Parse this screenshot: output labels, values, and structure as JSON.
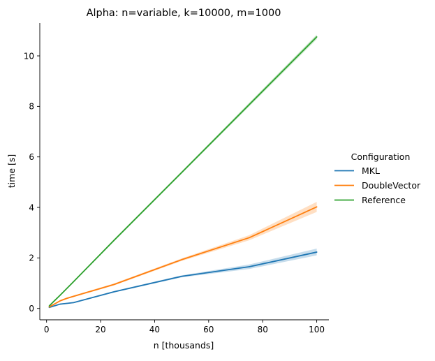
{
  "chart_data": {
    "type": "line",
    "title": "Alpha: n=variable, k=10000, m=1000",
    "xlabel": "n [thousands]",
    "ylabel": "time [s]",
    "xlim": [
      -2.5,
      104.5
    ],
    "ylim": [
      -0.45,
      11.3
    ],
    "xticks": [
      0,
      20,
      40,
      60,
      80,
      100
    ],
    "yticks": [
      0,
      2,
      4,
      6,
      8,
      10
    ],
    "grid": false,
    "legend": {
      "title": "Configuration",
      "placement": "right"
    },
    "series": [
      {
        "name": "MKL",
        "color": "#1f77b4",
        "x": [
          1,
          2.5,
          5,
          7.5,
          10,
          25,
          50,
          75,
          100
        ],
        "y": [
          0.04,
          0.09,
          0.17,
          0.2,
          0.23,
          0.66,
          1.27,
          1.65,
          2.23
        ],
        "lower": [
          0.03,
          0.08,
          0.15,
          0.18,
          0.21,
          0.63,
          1.23,
          1.56,
          2.1
        ],
        "upper": [
          0.05,
          0.1,
          0.19,
          0.22,
          0.25,
          0.69,
          1.31,
          1.74,
          2.37
        ]
      },
      {
        "name": "DoubleVector",
        "color": "#ff7f0e",
        "x": [
          1,
          2.5,
          5,
          7.5,
          10,
          25,
          50,
          75,
          100
        ],
        "y": [
          0.06,
          0.15,
          0.3,
          0.4,
          0.48,
          0.95,
          1.93,
          2.8,
          4.02
        ],
        "lower": [
          0.05,
          0.13,
          0.27,
          0.37,
          0.45,
          0.91,
          1.88,
          2.7,
          3.82
        ],
        "upper": [
          0.07,
          0.17,
          0.33,
          0.43,
          0.51,
          0.99,
          1.98,
          2.9,
          4.22
        ]
      },
      {
        "name": "Reference",
        "color": "#2ca02c",
        "x": [
          1,
          2.5,
          5,
          7.5,
          10,
          25,
          50,
          75,
          100
        ],
        "y": [
          0.1,
          0.26,
          0.52,
          0.79,
          1.06,
          2.7,
          5.38,
          8.07,
          10.75
        ],
        "lower": [
          0.09,
          0.25,
          0.5,
          0.77,
          1.03,
          2.66,
          5.33,
          8.0,
          10.66
        ],
        "upper": [
          0.11,
          0.27,
          0.54,
          0.81,
          1.09,
          2.74,
          5.43,
          8.14,
          10.84
        ]
      }
    ]
  }
}
